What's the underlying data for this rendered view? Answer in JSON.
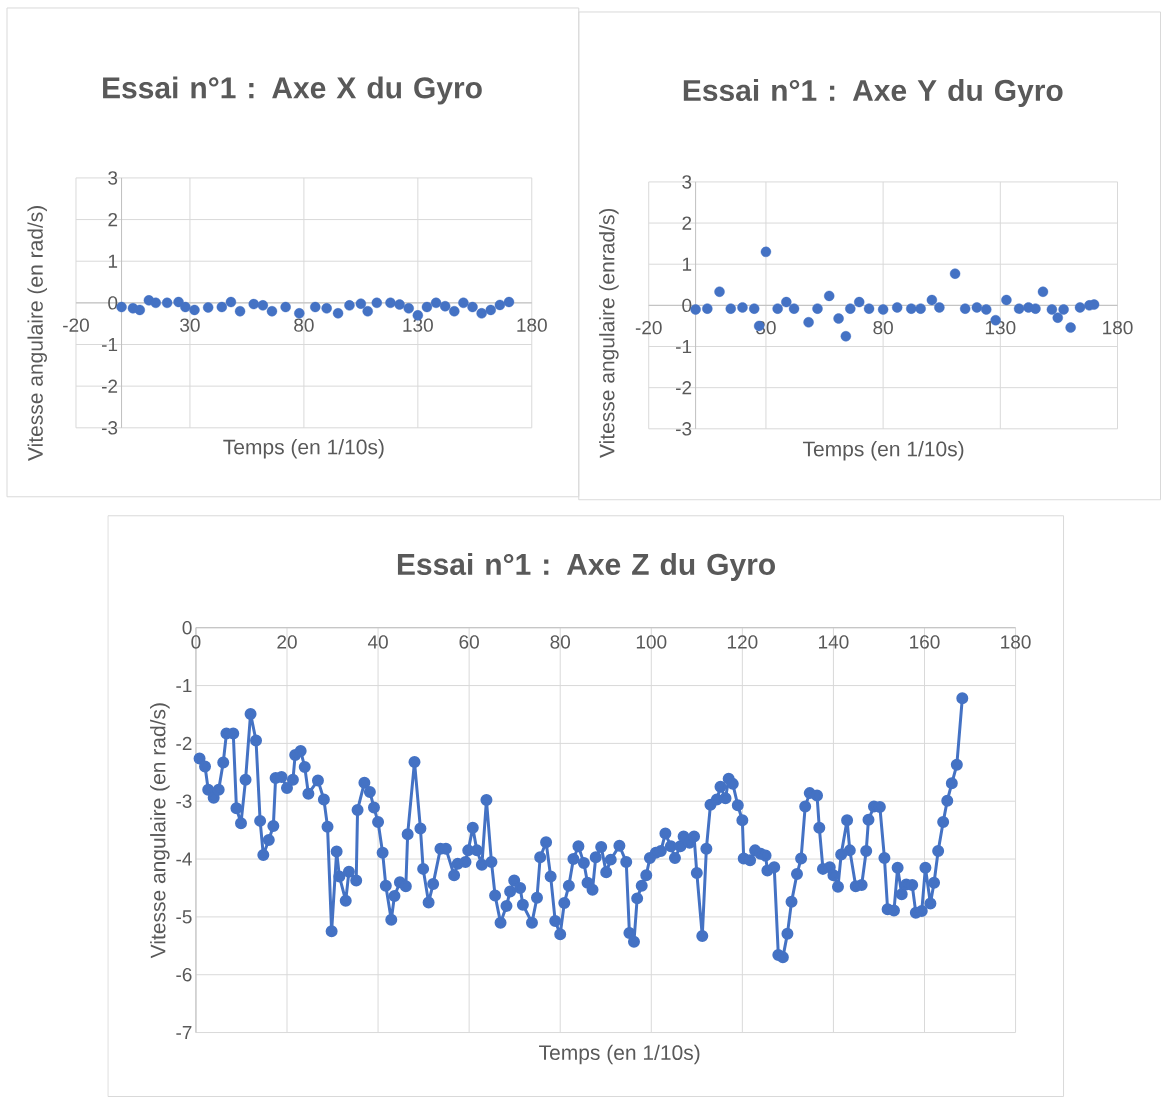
{
  "chart_data": [
    {
      "type": "scatter",
      "title": "Essai n°1 : Axe X du Gyro",
      "xlabel": "Temps (en 1/10s)",
      "ylabel": "Vitesse angulaire (en rad/s)",
      "color": "#4472c4",
      "marker": "circle",
      "grid": true,
      "x": [
        0,
        5,
        8,
        12,
        15,
        20,
        25,
        28,
        32,
        38,
        44,
        48,
        52,
        58,
        62,
        66,
        72,
        78,
        85,
        90,
        95,
        100,
        105,
        108,
        112,
        118,
        122,
        126,
        130,
        134,
        138,
        142,
        146,
        150,
        154,
        158,
        162,
        166,
        170
      ],
      "values": [
        -0.1,
        -0.13,
        -0.17,
        0.06,
        0,
        0,
        0.02,
        -0.1,
        -0.17,
        -0.11,
        -0.1,
        0.02,
        -0.2,
        -0.03,
        -0.06,
        -0.2,
        -0.1,
        -0.25,
        -0.1,
        -0.13,
        -0.25,
        -0.06,
        -0.02,
        -0.2,
        0,
        0,
        -0.04,
        -0.13,
        -0.3,
        -0.1,
        0,
        -0.08,
        -0.2,
        0,
        -0.1,
        -0.25,
        -0.17,
        -0.05,
        0.02
      ],
      "xlim": [
        -20,
        180
      ],
      "ylim": [
        -3,
        3
      ],
      "xticks": [
        -20,
        30,
        80,
        130,
        180
      ],
      "yticks": [
        -3,
        -2,
        -1,
        0,
        1,
        2,
        3
      ]
    },
    {
      "type": "scatter",
      "title": "Essai n°1 : Axe Y du Gyro",
      "xlabel": "Temps (en 1/10s)",
      "ylabel": "Vitesse angulaire (enrad/s)",
      "color": "#4472c4",
      "marker": "circle",
      "grid": true,
      "x": [
        0,
        5,
        10.2,
        15,
        20,
        25,
        27.1,
        30,
        35,
        38.7,
        42,
        48.2,
        52,
        57,
        61,
        64.1,
        66,
        69.8,
        74,
        80,
        86,
        92,
        96,
        100.8,
        104,
        110.7,
        115,
        120,
        124,
        128,
        132.6,
        138,
        142,
        145,
        148.2,
        152,
        154.5,
        157,
        160,
        164,
        168,
        170
      ],
      "values": [
        -0.1,
        -0.08,
        0.33,
        -0.08,
        -0.05,
        -0.08,
        -0.5,
        1.3,
        -0.08,
        0.08,
        -0.08,
        -0.41,
        -0.08,
        0.23,
        -0.32,
        -0.75,
        -0.08,
        0.08,
        -0.08,
        -0.1,
        -0.05,
        -0.08,
        -0.08,
        0.13,
        -0.05,
        0.77,
        -0.08,
        -0.05,
        -0.1,
        -0.36,
        0.13,
        -0.08,
        -0.05,
        -0.08,
        0.33,
        -0.1,
        -0.3,
        -0.1,
        -0.54,
        -0.05,
        0,
        0.02
      ],
      "xlim": [
        -20,
        180
      ],
      "ylim": [
        -3,
        3
      ],
      "xticks": [
        -20,
        30,
        80,
        130,
        180
      ],
      "yticks": [
        -3,
        -2,
        -1,
        0,
        1,
        2,
        3
      ]
    },
    {
      "type": "line",
      "title": "Essai n°1 : Axe Z du Gyro",
      "xlabel": "Temps (en 1/10s)",
      "ylabel": "Vitesse angulaire (en rad/s)",
      "color": "#4472c4",
      "marker": "circle",
      "grid": true,
      "x": [
        0.8,
        2.0,
        2.7,
        3.9,
        5.0,
        6.0,
        6.7,
        8.2,
        8.9,
        9.9,
        10.9,
        12.0,
        13.2,
        14.1,
        14.8,
        16.0,
        17.0,
        17.5,
        18.8,
        20.0,
        21.3,
        21.8,
        23.0,
        23.9,
        24.7,
        26.8,
        28.1,
        28.9,
        29.8,
        30.9,
        31.5,
        32.9,
        33.6,
        35.2,
        35.5,
        37.0,
        38.2,
        39.1,
        40.0,
        41.0,
        41.7,
        42.9,
        43.6,
        44.8,
        46.1,
        46.5,
        48.0,
        49.3,
        49.9,
        51.1,
        52.1,
        53.7,
        54.9,
        56.7,
        57.5,
        59.2,
        59.8,
        60.8,
        61.7,
        62.8,
        63.8,
        64.9,
        65.7,
        66.9,
        68.2,
        69.0,
        69.9,
        71.2,
        71.8,
        73.8,
        74.9,
        75.6,
        76.9,
        77.9,
        78.9,
        80.0,
        80.9,
        81.9,
        82.9,
        84.0,
        85.2,
        86.0,
        87.1,
        87.8,
        89.0,
        90.1,
        91.1,
        93.0,
        94.5,
        95.2,
        96.2,
        96.9,
        97.9,
        98.9,
        99.7,
        101.0,
        102.1,
        103.1,
        104.3,
        105.2,
        106.4,
        107.1,
        108.4,
        109.4,
        110.0,
        111.2,
        112.1,
        113.0,
        114.4,
        115.2,
        116.3,
        117.0,
        117.9,
        119.0,
        120.0,
        120.3,
        121.7,
        122.8,
        124.0,
        125.1,
        125.5,
        127.0,
        127.9,
        128.9,
        129.9,
        130.8,
        132.0,
        132.9,
        133.8,
        134.8,
        136.4,
        136.9,
        137.7,
        139.2,
        140.0,
        141.0,
        141.7,
        143.0,
        143.6,
        144.9,
        146.2,
        147.2,
        147.7,
        148.9,
        150.2,
        151.2,
        151.9,
        153.3,
        154.1,
        155.0,
        156.0,
        157.3,
        158.1,
        159.4,
        160.2,
        161.3,
        162.1,
        163.0,
        164.1,
        165.0,
        166.0,
        167.1,
        168.3
      ],
      "values": [
        -2.26,
        -2.4,
        -2.8,
        -2.94,
        -2.8,
        -2.33,
        -1.83,
        -1.83,
        -3.12,
        -3.38,
        -2.63,
        -1.49,
        -1.95,
        -3.34,
        -3.93,
        -3.67,
        -3.43,
        -2.6,
        -2.58,
        -2.77,
        -2.63,
        -2.2,
        -2.13,
        -2.41,
        -2.87,
        -2.64,
        -2.97,
        -3.44,
        -5.25,
        -3.87,
        -4.3,
        -4.72,
        -4.22,
        -4.37,
        -3.15,
        -2.68,
        -2.84,
        -3.11,
        -3.36,
        -3.89,
        -4.46,
        -5.05,
        -4.64,
        -4.4,
        -4.47,
        -3.57,
        -2.32,
        -3.47,
        -4.17,
        -4.75,
        -4.43,
        -3.82,
        -3.82,
        -4.28,
        -4.08,
        -4.05,
        -3.85,
        -3.46,
        -3.85,
        -4.1,
        -2.98,
        -4.05,
        -4.63,
        -5.1,
        -4.81,
        -4.56,
        -4.37,
        -4.5,
        -4.79,
        -5.1,
        -4.67,
        -3.97,
        -3.71,
        -4.3,
        -5.07,
        -5.3,
        -4.76,
        -4.46,
        -4.0,
        -3.78,
        -4.07,
        -4.41,
        -4.53,
        -3.97,
        -3.79,
        -4.23,
        -4.01,
        -3.77,
        -4.05,
        -5.28,
        -5.43,
        -4.68,
        -4.46,
        -4.28,
        -3.98,
        -3.89,
        -3.86,
        -3.56,
        -3.78,
        -3.98,
        -3.78,
        -3.61,
        -3.72,
        -3.61,
        -4.24,
        -5.33,
        -3.82,
        -3.06,
        -2.97,
        -2.75,
        -2.95,
        -2.61,
        -2.7,
        -3.07,
        -3.33,
        -3.99,
        -4.02,
        -3.85,
        -3.91,
        -3.94,
        -4.2,
        -4.14,
        -5.66,
        -5.7,
        -5.29,
        -4.74,
        -4.26,
        -3.99,
        -3.09,
        -2.86,
        -2.9,
        -3.46,
        -4.17,
        -4.14,
        -4.28,
        -4.48,
        -3.92,
        -3.33,
        -3.85,
        -4.47,
        -4.45,
        -3.86,
        -3.32,
        -3.09,
        -3.1,
        -3.98,
        -4.87,
        -4.89,
        -4.15,
        -4.61,
        -4.44,
        -4.45,
        -4.93,
        -4.9,
        -4.15,
        -4.77,
        -4.41,
        -3.86,
        -3.36,
        -2.99,
        -2.69,
        -2.37,
        -1.22
      ],
      "xlim": [
        0,
        180
      ],
      "ylim": [
        -7,
        0
      ],
      "xticks": [
        0,
        20,
        40,
        60,
        80,
        100,
        120,
        140,
        160,
        180
      ],
      "yticks": [
        -7,
        -6,
        -5,
        -4,
        -3,
        -2,
        -1,
        0
      ]
    }
  ]
}
